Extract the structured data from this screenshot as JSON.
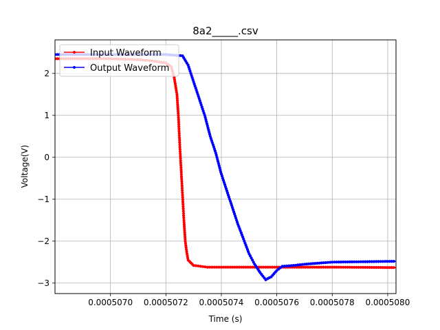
{
  "chart_data": {
    "type": "line",
    "title": "8a2_____.csv",
    "xlabel": "Time (s)",
    "ylabel": "Voltage(V)",
    "xlim": [
      0.0005068,
      0.00050803
    ],
    "ylim": [
      -3.25,
      2.8
    ],
    "xticks": [
      0.000507,
      0.0005072,
      0.0005074,
      0.0005076,
      0.0005078,
      0.000508
    ],
    "xtick_labels": [
      "0.0005070",
      "0.0005072",
      "0.0005074",
      "0.0005076",
      "0.0005078",
      "0.0005080"
    ],
    "yticks": [
      -3,
      -2,
      -1,
      0,
      1,
      2
    ],
    "ytick_labels": [
      "−3",
      "−2",
      "−1",
      "0",
      "1",
      "2"
    ],
    "grid": true,
    "legend_position": "top-left",
    "series": [
      {
        "name": "Input Waveform",
        "color": "#ff0000",
        "marker": "dot",
        "points": [
          [
            0.0005068,
            2.35
          ],
          [
            0.000507,
            2.35
          ],
          [
            0.0005071,
            2.33
          ],
          [
            0.00050715,
            2.3
          ],
          [
            0.0005072,
            2.25
          ],
          [
            0.00050722,
            2.15
          ],
          [
            0.00050723,
            1.9
          ],
          [
            0.00050724,
            1.5
          ],
          [
            0.000507245,
            1.0
          ],
          [
            0.00050725,
            0.3
          ],
          [
            0.000507255,
            -0.3
          ],
          [
            0.00050726,
            -0.9
          ],
          [
            0.000507265,
            -1.5
          ],
          [
            0.00050727,
            -2.0
          ],
          [
            0.000507275,
            -2.25
          ],
          [
            0.00050728,
            -2.45
          ],
          [
            0.0005073,
            -2.58
          ],
          [
            0.00050735,
            -2.62
          ],
          [
            0.0005074,
            -2.62
          ],
          [
            0.0005076,
            -2.62
          ],
          [
            0.0005078,
            -2.62
          ],
          [
            0.00050803,
            -2.63
          ]
        ]
      },
      {
        "name": "Output Waveform",
        "color": "#0000ff",
        "marker": "dot",
        "points": [
          [
            0.0005068,
            2.45
          ],
          [
            0.0005071,
            2.45
          ],
          [
            0.0005072,
            2.45
          ],
          [
            0.00050726,
            2.42
          ],
          [
            0.00050728,
            2.2
          ],
          [
            0.0005073,
            1.8
          ],
          [
            0.00050732,
            1.4
          ],
          [
            0.00050734,
            1.0
          ],
          [
            0.00050736,
            0.5
          ],
          [
            0.00050738,
            0.1
          ],
          [
            0.0005074,
            -0.4
          ],
          [
            0.00050742,
            -0.8
          ],
          [
            0.00050744,
            -1.2
          ],
          [
            0.00050746,
            -1.6
          ],
          [
            0.00050748,
            -1.95
          ],
          [
            0.0005075,
            -2.3
          ],
          [
            0.00050752,
            -2.55
          ],
          [
            0.00050754,
            -2.75
          ],
          [
            0.00050756,
            -2.92
          ],
          [
            0.00050758,
            -2.85
          ],
          [
            0.0005076,
            -2.7
          ],
          [
            0.00050762,
            -2.6
          ],
          [
            0.00050766,
            -2.58
          ],
          [
            0.0005077,
            -2.55
          ],
          [
            0.0005078,
            -2.5
          ],
          [
            0.00050803,
            -2.48
          ]
        ]
      }
    ]
  }
}
